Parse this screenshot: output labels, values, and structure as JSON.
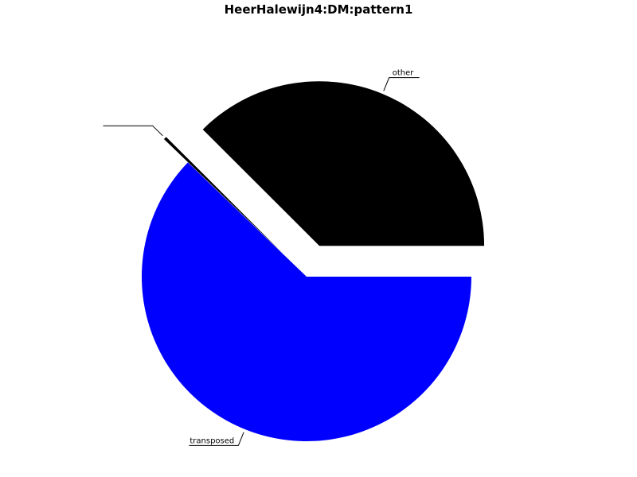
{
  "chart_data": {
    "type": "pie",
    "title": "HeerHalewijn4:DM:pattern1",
    "slices": [
      {
        "label": "other",
        "value": 37.5,
        "color": "#000000",
        "exploded": true
      },
      {
        "label": "",
        "value": 0.3,
        "color": "#000000",
        "exploded": true
      },
      {
        "label": "transposed",
        "value": 62.2,
        "color": "#0000ff",
        "exploded": false
      }
    ],
    "start_angle_deg": 0,
    "direction": "counterclockwise"
  }
}
